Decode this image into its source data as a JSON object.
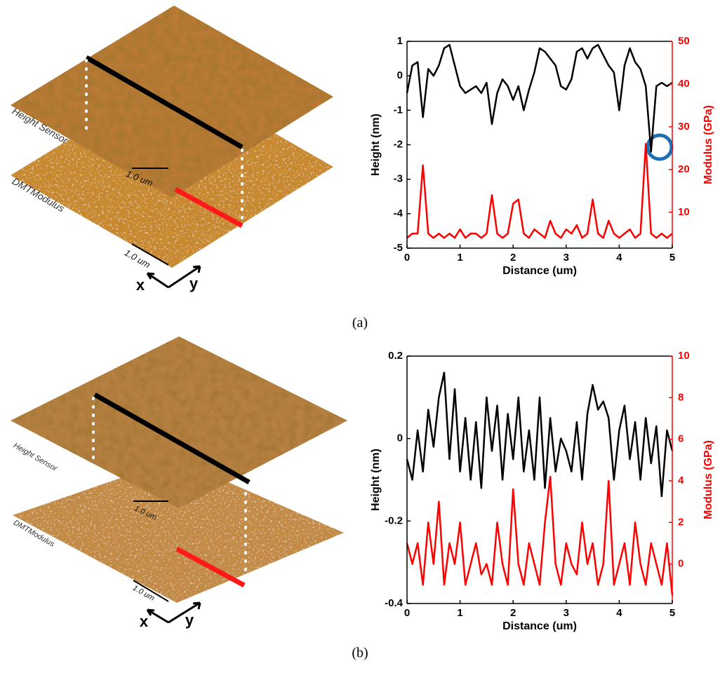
{
  "panels": [
    {
      "label": "(a)",
      "layer_labels": [
        "Height Sensor",
        "DMTModulus"
      ],
      "scale_bars": [
        "1.0 um",
        "1.0 um"
      ],
      "axis_labels": [
        "x",
        "y"
      ]
    },
    {
      "label": "(b)",
      "layer_labels": [
        "Height Sensor",
        "DMTModulus"
      ],
      "scale_bars": [
        "1.0 um",
        "1.0 um"
      ],
      "axis_labels": [
        "x",
        "y"
      ]
    }
  ],
  "chart_data": [
    {
      "type": "line",
      "xlabel": "Distance (um)",
      "ylabel": "Height (nm)",
      "y2label": "Modulus (GPa)",
      "xlim": [
        0,
        5
      ],
      "xticks": [
        0,
        1,
        2,
        3,
        4,
        5
      ],
      "ylim": [
        -5,
        1
      ],
      "yticks": [
        -5,
        -4,
        -3,
        -2,
        -1,
        0,
        1
      ],
      "y2lim": [
        1.6,
        50
      ],
      "y2ticks": [
        10,
        20,
        30,
        40,
        50
      ],
      "x": [
        0,
        0.1,
        0.2,
        0.3,
        0.4,
        0.5,
        0.6,
        0.7,
        0.8,
        0.9,
        1,
        1.1,
        1.2,
        1.3,
        1.4,
        1.5,
        1.6,
        1.7,
        1.8,
        1.9,
        2,
        2.1,
        2.2,
        2.3,
        2.4,
        2.5,
        2.6,
        2.7,
        2.8,
        2.9,
        3,
        3.1,
        3.2,
        3.3,
        3.4,
        3.5,
        3.6,
        3.7,
        3.8,
        3.9,
        4,
        4.1,
        4.2,
        4.3,
        4.4,
        4.5,
        4.6,
        4.7,
        4.8,
        4.9,
        5
      ],
      "series": [
        {
          "color": "#000000",
          "values": [
            -0.5,
            0.3,
            0.4,
            -1.2,
            0.2,
            0.0,
            0.3,
            0.8,
            0.9,
            0.3,
            -0.3,
            -0.5,
            -0.4,
            -0.3,
            -0.5,
            -0.2,
            -1.4,
            -0.5,
            -0.1,
            -0.3,
            -0.7,
            -0.3,
            -1.0,
            -0.4,
            0.1,
            0.8,
            0.7,
            0.5,
            0.3,
            -0.3,
            -0.4,
            -0.1,
            0.7,
            0.8,
            0.5,
            0.8,
            0.9,
            0.6,
            0.3,
            0.1,
            -1.0,
            0.3,
            0.8,
            0.4,
            0.2,
            -0.3,
            -2.2,
            -0.3,
            -0.2,
            -0.3,
            -0.2
          ]
        },
        {
          "color": "#ff0000",
          "axis": "y2",
          "values": [
            4,
            5,
            5,
            21,
            5,
            4,
            5,
            4,
            5,
            4,
            6,
            4,
            5,
            5,
            4,
            5,
            14,
            5,
            4,
            5,
            12,
            13,
            5,
            4,
            6,
            5,
            4,
            8,
            5,
            4,
            6,
            5,
            7,
            4,
            5,
            13,
            5,
            4,
            8,
            5,
            4,
            5,
            6,
            4,
            5,
            26,
            5,
            4,
            5,
            4,
            5
          ]
        }
      ]
    },
    {
      "type": "line",
      "xlabel": "Distance (um)",
      "ylabel": "Height (nm)",
      "y2label": "Modulus (GPa)",
      "xlim": [
        0,
        5
      ],
      "xticks": [
        0,
        1,
        2,
        3,
        4,
        5
      ],
      "ylim": [
        -0.4,
        0.2
      ],
      "yticks": [
        -0.4,
        -0.2,
        0,
        0.2
      ],
      "y2lim": [
        -1.9,
        10
      ],
      "y2ticks": [
        0,
        2,
        4,
        6,
        8,
        10
      ],
      "x": [
        0,
        0.1,
        0.2,
        0.3,
        0.4,
        0.5,
        0.6,
        0.7,
        0.8,
        0.9,
        1,
        1.1,
        1.2,
        1.3,
        1.4,
        1.5,
        1.6,
        1.7,
        1.8,
        1.9,
        2,
        2.1,
        2.2,
        2.3,
        2.4,
        2.5,
        2.6,
        2.7,
        2.8,
        2.9,
        3,
        3.1,
        3.2,
        3.3,
        3.4,
        3.5,
        3.6,
        3.7,
        3.8,
        3.9,
        4,
        4.1,
        4.2,
        4.3,
        4.4,
        4.5,
        4.6,
        4.7,
        4.8,
        4.9,
        5
      ],
      "series": [
        {
          "color": "#000000",
          "values": [
            -0.05,
            -0.1,
            0.02,
            -0.08,
            0.07,
            -0.02,
            0.1,
            0.16,
            -0.05,
            0.12,
            -0.08,
            0.05,
            -0.1,
            0.04,
            -0.12,
            0.1,
            -0.03,
            0.08,
            -0.1,
            0.06,
            -0.05,
            0.1,
            -0.08,
            0.02,
            -0.1,
            0.1,
            -0.12,
            0.05,
            -0.08,
            0.0,
            -0.03,
            -0.08,
            0.04,
            -0.1,
            0.06,
            0.13,
            0.07,
            0.09,
            0.05,
            -0.1,
            0.02,
            0.08,
            -0.05,
            0.04,
            -0.1,
            0.05,
            -0.06,
            0.03,
            -0.14,
            0.02,
            -0.03
          ]
        },
        {
          "color": "#ff0000",
          "axis": "y2",
          "values": [
            1,
            0,
            1,
            -1,
            2,
            0,
            3,
            -1,
            1,
            0,
            2,
            -1,
            0,
            1,
            -0.5,
            0,
            -1,
            2,
            0,
            -1,
            3.6,
            0,
            -1,
            1,
            0,
            -1,
            2,
            4.2,
            0,
            -1,
            1,
            0,
            -0.5,
            2,
            0,
            1,
            -1,
            0,
            4,
            -1,
            0,
            1,
            -1,
            2,
            0,
            -1,
            1,
            0,
            -1,
            1,
            -1.5
          ]
        }
      ]
    }
  ]
}
